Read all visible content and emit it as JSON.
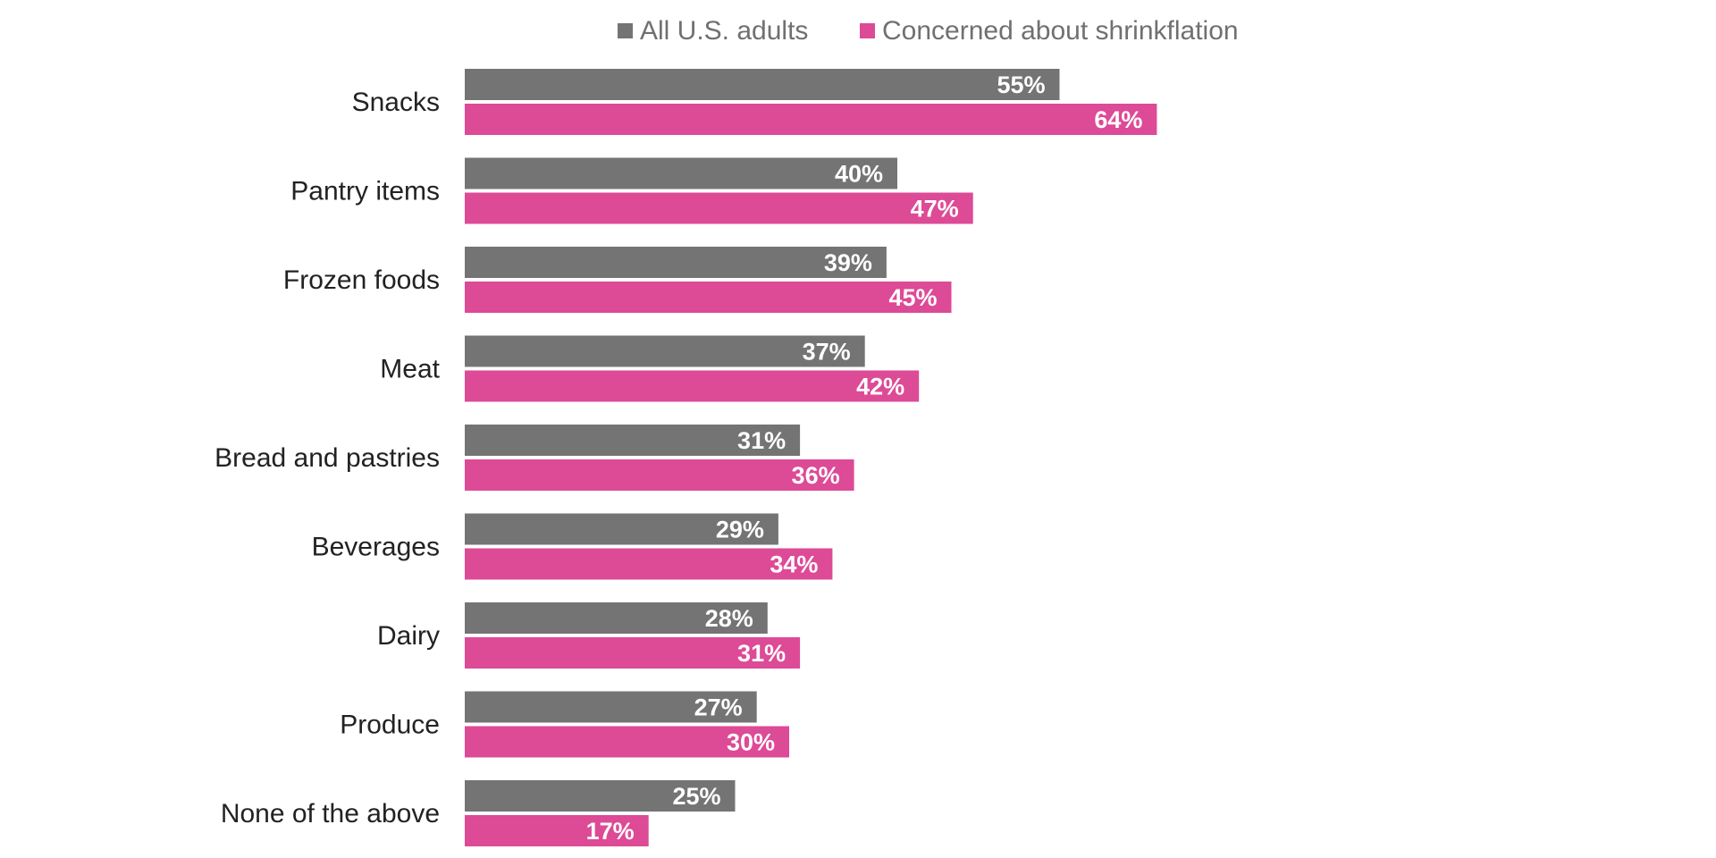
{
  "chart_data": {
    "type": "bar",
    "orientation": "horizontal",
    "title": "",
    "xlabel": "",
    "ylabel": "",
    "categories": [
      "Snacks",
      "Pantry items",
      "Frozen foods",
      "Meat",
      "Bread and pastries",
      "Beverages",
      "Dairy",
      "Produce",
      "None of the above"
    ],
    "series": [
      {
        "name": "All U.S. adults",
        "color": "#747474",
        "values": [
          55,
          40,
          39,
          37,
          31,
          29,
          28,
          27,
          25
        ],
        "labels": [
          "55%",
          "40%",
          "39%",
          "37%",
          "31%",
          "29%",
          "28%",
          "27%",
          "25%"
        ]
      },
      {
        "name": "Concerned about shrinkflation",
        "color": "#dd4a96",
        "values": [
          64,
          47,
          45,
          42,
          36,
          34,
          31,
          30,
          17
        ],
        "labels": [
          "64%",
          "47%",
          "45%",
          "42%",
          "36%",
          "34%",
          "31%",
          "30%",
          "17%"
        ]
      }
    ],
    "xlim": [
      0,
      100
    ],
    "grid": false,
    "legend_position": "top"
  }
}
